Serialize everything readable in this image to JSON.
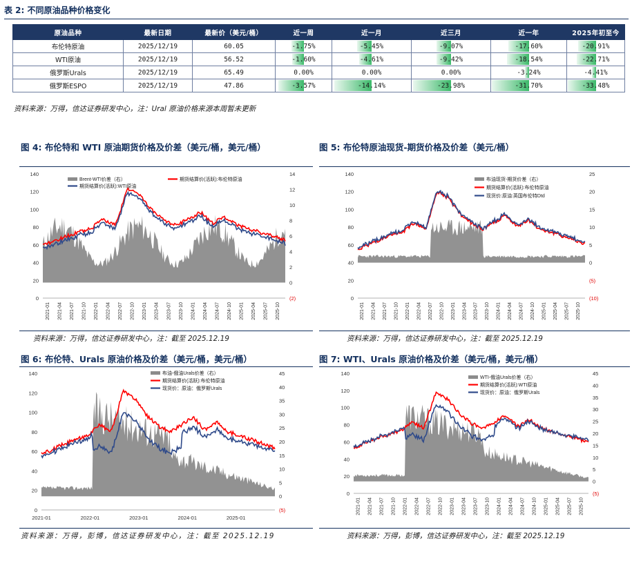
{
  "table": {
    "title": "表 2:  不同原油品种价格变化",
    "headers": [
      "原油品种",
      "最新日期",
      "最新价（美元/桶）",
      "近一周",
      "近一月",
      "近三月",
      "近一年",
      "2025年初至今"
    ],
    "rows": [
      {
        "name": "布伦特原油",
        "date": "2025/12/19",
        "price": "60.05",
        "changes": [
          "-1.75%",
          "-5.45%",
          "-9.07%",
          "-17.60%",
          "-20.91%"
        ],
        "values": [
          -1.75,
          -5.45,
          -9.07,
          -17.6,
          -20.91
        ]
      },
      {
        "name": "WTI原油",
        "date": "2025/12/19",
        "price": "56.52",
        "changes": [
          "-1.60%",
          "-4.61%",
          "-9.42%",
          "-18.54%",
          "-22.71%"
        ],
        "values": [
          -1.6,
          -4.61,
          -9.42,
          -18.54,
          -22.71
        ]
      },
      {
        "name": "俄罗斯Urals",
        "date": "2025/12/19",
        "price": "65.49",
        "changes": [
          "0.00%",
          "0.00%",
          "0.00%",
          "-3.24%",
          "-4.41%"
        ],
        "values": [
          0,
          0,
          0,
          -3.24,
          -4.41
        ]
      },
      {
        "name": "俄罗斯ESPO",
        "date": "2025/12/19",
        "price": "47.86",
        "changes": [
          "-3.57%",
          "-14.14%",
          "-23.98%",
          "-31.70%",
          "-33.48%"
        ],
        "values": [
          -3.57,
          -14.14,
          -23.98,
          -31.7,
          -33.48
        ]
      }
    ],
    "source": "资料来源：万得，信达证券研发中心，注：Ural 原油价格来源本周暂未更新"
  },
  "colors": {
    "navy": "#1f3864",
    "red": "#ff0000",
    "blue": "#2f4a8a",
    "gray": "#8c8c8c",
    "green": "#3cb96a"
  },
  "charts": [
    {
      "title": "图 4:  布伦特和  WTI  原油期货价格及价差（美元/桶，美元/桶）",
      "source": "资料来源：万得，信达证券研发中心，注：截至 2025.12.19",
      "legend": [
        "Brent-WTI价差（右）",
        "期货结算价(活跃):布伦特原油",
        "期货结算价(活跃):WTI原油"
      ],
      "left_ticks": [
        "140",
        "120",
        "100",
        "80",
        "60",
        "40",
        "20",
        "0"
      ],
      "right_ticks": [
        "14",
        "12",
        "10",
        "8",
        "6",
        "4",
        "2",
        "0",
        "(2)"
      ],
      "x_ticks": [
        "2021-01",
        "2021-04",
        "2021-07",
        "2021-10",
        "2022-01",
        "2022-04",
        "2022-07",
        "2022-10",
        "2023-01",
        "2023-04",
        "2023-07",
        "2023-10",
        "2024-01",
        "2024-04",
        "2024-07",
        "2024-10",
        "2025-01",
        "2025-04",
        "2025-07",
        "2025-10"
      ]
    },
    {
      "title": "图 5:  布伦特原油现货-期货价格及价差（美元/桶）",
      "source": "资料来源：万得，信达证券研发中心，注：截至 2025.12.19",
      "legend": [
        "布油现货-期货价差（右）",
        "期货结算价(活跃):布伦特原油",
        "现货价:原油:英国布伦特Dtd"
      ],
      "left_ticks": [
        "140",
        "120",
        "100",
        "80",
        "60",
        "40",
        "20",
        "0"
      ],
      "right_ticks": [
        "25",
        "20",
        "15",
        "10",
        "5",
        "0",
        "(5)",
        "(10)"
      ],
      "x_ticks": [
        "2021-01",
        "2021-04",
        "2021-07",
        "2021-10",
        "2022-01",
        "2022-04",
        "2022-07",
        "2022-10",
        "2023-01",
        "2023-04",
        "2023-07",
        "2023-10",
        "2024-01",
        "2024-04",
        "2024-07",
        "2024-10",
        "2025-01",
        "2025-04",
        "2025-07",
        "2025-10"
      ]
    },
    {
      "title": "图 6:  布伦特、Urals 原油价格及价差（美元/桶，美元/桶）",
      "source": "资料来源：万得，彭博，信达证券研发中心，注：截至 2025.12.19",
      "legend": [
        "布油-俄油Urals价差（右）",
        "期货结算价(活跃):布伦特原油",
        "现货价：原油：俄罗斯Urals"
      ],
      "left_ticks": [
        "140",
        "120",
        "100",
        "80",
        "60",
        "40",
        "20",
        "0"
      ],
      "right_ticks": [
        "45",
        "40",
        "35",
        "30",
        "25",
        "20",
        "15",
        "10",
        "5",
        "0",
        "(5)"
      ],
      "x_ticks": [
        "2021-01",
        "2022-01",
        "2023-01",
        "2024-01",
        "2025-01"
      ]
    },
    {
      "title": "图 7:  WTI、Urals 原油价格及价差（美元/桶，美元/桶）",
      "source": "资料来源：万得，彭博，信达证券研发中心，注：截至 2025.12.19",
      "legend": [
        "WTI-俄油Urals价差（右）",
        "期货结算价(活跃):WTI原油",
        "现货价：原油：俄罗斯Urals"
      ],
      "left_ticks": [
        "140",
        "120",
        "100",
        "80",
        "60",
        "40",
        "20",
        "0"
      ],
      "right_ticks": [
        "45",
        "40",
        "35",
        "30",
        "25",
        "20",
        "15",
        "10",
        "5",
        "0",
        "(5)"
      ],
      "x_ticks": [
        "2021-01",
        "2021-04",
        "2021-07",
        "2021-10",
        "2022-01",
        "2022-04",
        "2022-07",
        "2022-10",
        "2023-01",
        "2023-04",
        "2023-07",
        "2023-10",
        "2024-01",
        "2024-04",
        "2024-07",
        "2024-10",
        "2025-01",
        "2025-04",
        "2025-07",
        "2025-10"
      ]
    }
  ]
}
